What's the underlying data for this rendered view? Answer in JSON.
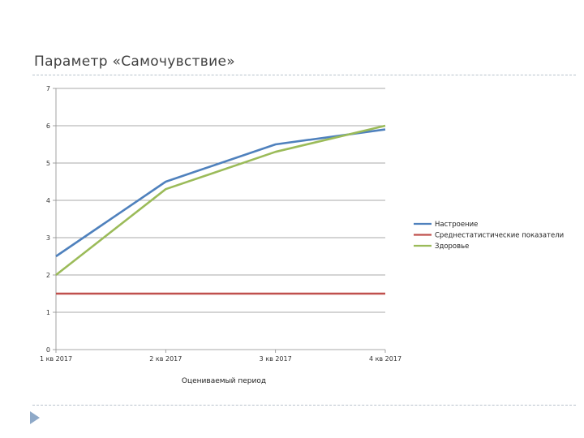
{
  "page": {
    "title": "Параметр «Самочувствие»"
  },
  "chart_data": {
    "type": "line",
    "categories": [
      "1 кв 2017",
      "2 кв 2017",
      "3 кв 2017",
      "4 кв 2017"
    ],
    "series": [
      {
        "name": "Настроение",
        "values": [
          2.5,
          4.5,
          5.5,
          5.9
        ],
        "color": "#4f81bd"
      },
      {
        "name": "Среднестатистические показатели",
        "values": [
          1.5,
          1.5,
          1.5,
          1.5
        ],
        "color": "#c0504d"
      },
      {
        "name": "Здоровье",
        "values": [
          2.0,
          4.3,
          5.3,
          6.0
        ],
        "color": "#9bbb59"
      }
    ],
    "xlabel": "Оцениваемый период",
    "ylabel": "",
    "ylim": [
      0,
      7
    ],
    "yticks": [
      "0",
      "1",
      "2",
      "3",
      "4",
      "5",
      "6",
      "7"
    ],
    "grid": true,
    "legend": "right"
  }
}
